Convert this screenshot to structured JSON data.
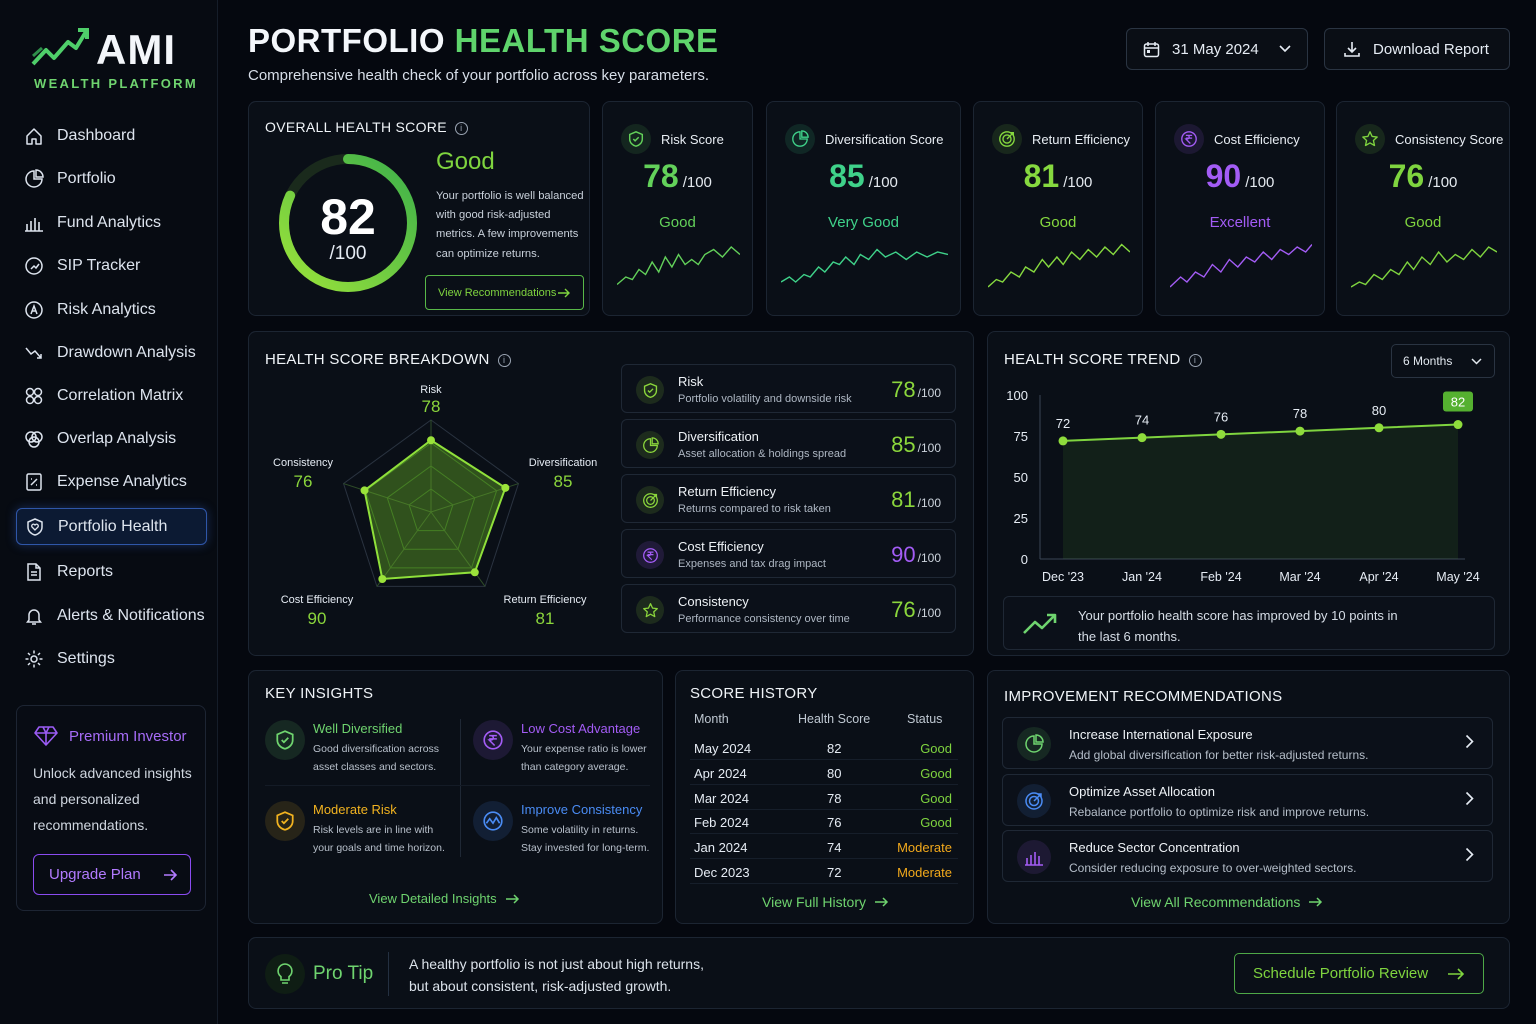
{
  "brand": {
    "name": "AMI",
    "tagline": "WEALTH PLATFORM"
  },
  "nav": [
    {
      "label": "Dashboard",
      "icon": "home-icon"
    },
    {
      "label": "Portfolio",
      "icon": "pie-chart-icon"
    },
    {
      "label": "Fund Analytics",
      "icon": "bar-chart-icon"
    },
    {
      "label": "SIP Tracker",
      "icon": "sip-icon"
    },
    {
      "label": "Risk Analytics",
      "icon": "risk-icon"
    },
    {
      "label": "Drawdown Analysis",
      "icon": "trend-down-icon"
    },
    {
      "label": "Correlation Matrix",
      "icon": "grid-icon"
    },
    {
      "label": "Overlap Analysis",
      "icon": "overlap-icon"
    },
    {
      "label": "Expense Analytics",
      "icon": "receipt-icon"
    },
    {
      "label": "Portfolio Health",
      "icon": "shield-heart-icon",
      "active": true
    },
    {
      "label": "Reports",
      "icon": "document-icon"
    },
    {
      "label": "Alerts & Notifications",
      "icon": "bell-icon"
    },
    {
      "label": "Settings",
      "icon": "gear-icon"
    }
  ],
  "premium": {
    "title": "Premium Investor",
    "text": "Unlock advanced insights and personalized recommendations.",
    "button": "Upgrade Plan"
  },
  "header": {
    "title_part1": "PORTFOLIO",
    "title_part2": "HEALTH SCORE",
    "subtitle": "Comprehensive health check of your portfolio across key parameters.",
    "date": "31 May 2024",
    "download": "Download Report"
  },
  "overall": {
    "title": "OVERALL HEALTH SCORE",
    "score": "82",
    "max": "/100",
    "score_value": 82,
    "rating": "Good",
    "description": "Your portfolio is well balanced with good risk-adjusted metrics. A few improvements can optimize returns.",
    "button": "View Recommendations"
  },
  "score_cards": [
    {
      "title": "Risk Score",
      "score": "78",
      "max": "/100",
      "rating": "Good",
      "color": "#63d15a",
      "icon": "shield-check-icon"
    },
    {
      "title": "Diversification Score",
      "score": "85",
      "max": "/100",
      "rating": "Very Good",
      "color": "#3fd28a",
      "icon": "pie-chart-icon"
    },
    {
      "title": "Return Efficiency",
      "score": "81",
      "max": "/100",
      "rating": "Good",
      "color": "#86d93f",
      "icon": "target-icon"
    },
    {
      "title": "Cost Efficiency",
      "score": "90",
      "max": "/100",
      "rating": "Excellent",
      "color": "#a35cf5",
      "icon": "rupee-icon"
    },
    {
      "title": "Consistency Score",
      "score": "76",
      "max": "/100",
      "rating": "Good",
      "color": "#7fd43f",
      "icon": "star-icon"
    }
  ],
  "breakdown": {
    "title": "HEALTH SCORE BREAKDOWN",
    "radar": [
      {
        "label": "Risk",
        "value": "78"
      },
      {
        "label": "Diversification",
        "value": "85"
      },
      {
        "label": "Return Efficiency",
        "value": "81"
      },
      {
        "label": "Cost Efficiency",
        "value": "90"
      },
      {
        "label": "Consistency",
        "value": "76"
      }
    ],
    "rows": [
      {
        "name": "Risk",
        "desc": "Portfolio volatility and downside risk",
        "score": "78",
        "max": "/100",
        "color": "#8bd63c",
        "icon": "shield-check-icon"
      },
      {
        "name": "Diversification",
        "desc": "Asset allocation & holdings spread",
        "score": "85",
        "max": "/100",
        "color": "#8bd63c",
        "icon": "pie-chart-icon"
      },
      {
        "name": "Return Efficiency",
        "desc": "Returns compared to risk taken",
        "score": "81",
        "max": "/100",
        "color": "#8bd63c",
        "icon": "target-icon"
      },
      {
        "name": "Cost Efficiency",
        "desc": "Expenses and tax drag impact",
        "score": "90",
        "max": "/100",
        "color": "#a35cf5",
        "icon": "rupee-icon"
      },
      {
        "name": "Consistency",
        "desc": "Performance consistency over time",
        "score": "76",
        "max": "/100",
        "color": "#8bd63c",
        "icon": "star-icon"
      }
    ]
  },
  "trend": {
    "title": "HEALTH SCORE TREND",
    "range": "6 Months",
    "note": "Your portfolio health score has improved by 10 points in the last 6 months."
  },
  "chart_data": {
    "type": "line",
    "title": "HEALTH SCORE TREND",
    "x": [
      "Dec '23",
      "Jan '24",
      "Feb '24",
      "Mar '24",
      "Apr '24",
      "May '24"
    ],
    "values": [
      72,
      74,
      76,
      78,
      80,
      82
    ],
    "yticks": [
      "0",
      "25",
      "50",
      "75",
      "100"
    ],
    "ylim": [
      0,
      100
    ],
    "grid": false,
    "highlight_last": true
  },
  "insights": {
    "title": "KEY INSIGHTS",
    "items": [
      {
        "title": "Well Diversified",
        "desc": "Good diversification across asset classes and sectors.",
        "color": "#6fd46f",
        "icon": "shield-check-icon"
      },
      {
        "title": "Low Cost Advantage",
        "desc": "Your expense ratio is lower than category average.",
        "color": "#a35cf5",
        "icon": "rupee-icon"
      },
      {
        "title": "Moderate Risk",
        "desc": "Risk levels are in line with your goals and time horizon.",
        "color": "#f2b320",
        "icon": "shield-alert-icon"
      },
      {
        "title": "Improve Consistency",
        "desc": "Some volatility in returns. Stay invested for long-term.",
        "color": "#4a8cf5",
        "icon": "wave-icon"
      }
    ],
    "link": "View Detailed Insights"
  },
  "history": {
    "title": "SCORE HISTORY",
    "headers": [
      "Month",
      "Health Score",
      "Status"
    ],
    "rows": [
      {
        "month": "May 2024",
        "score": "82",
        "status": "Good"
      },
      {
        "month": "Apr 2024",
        "score": "80",
        "status": "Good"
      },
      {
        "month": "Mar 2024",
        "score": "78",
        "status": "Good"
      },
      {
        "month": "Feb 2024",
        "score": "76",
        "status": "Good"
      },
      {
        "month": "Jan 2024",
        "score": "74",
        "status": "Moderate"
      },
      {
        "month": "Dec 2023",
        "score": "72",
        "status": "Moderate"
      }
    ],
    "status_colors": {
      "Good": "#7fd43f",
      "Moderate": "#f2a91c"
    },
    "link": "View Full History"
  },
  "recommendations": {
    "title": "IMPROVEMENT RECOMMENDATIONS",
    "items": [
      {
        "title": "Increase International Exposure",
        "desc": "Add global diversification for better risk-adjusted returns.",
        "icon": "pie-chart-icon",
        "color": "#6fd46f"
      },
      {
        "title": "Optimize Asset Allocation",
        "desc": "Rebalance portfolio to optimize risk and improve returns.",
        "icon": "target-icon",
        "color": "#4a8cf5"
      },
      {
        "title": "Reduce Sector Concentration",
        "desc": "Consider reducing exposure to over-weighted sectors.",
        "icon": "bar-chart-icon",
        "color": "#a35cf5"
      }
    ],
    "link": "View All Recommendations"
  },
  "tip": {
    "title": "Pro Tip",
    "line1": "A healthy portfolio is not just about high returns,",
    "line2": "but about consistent, risk-adjusted growth.",
    "button": "Schedule Portfolio Review"
  }
}
